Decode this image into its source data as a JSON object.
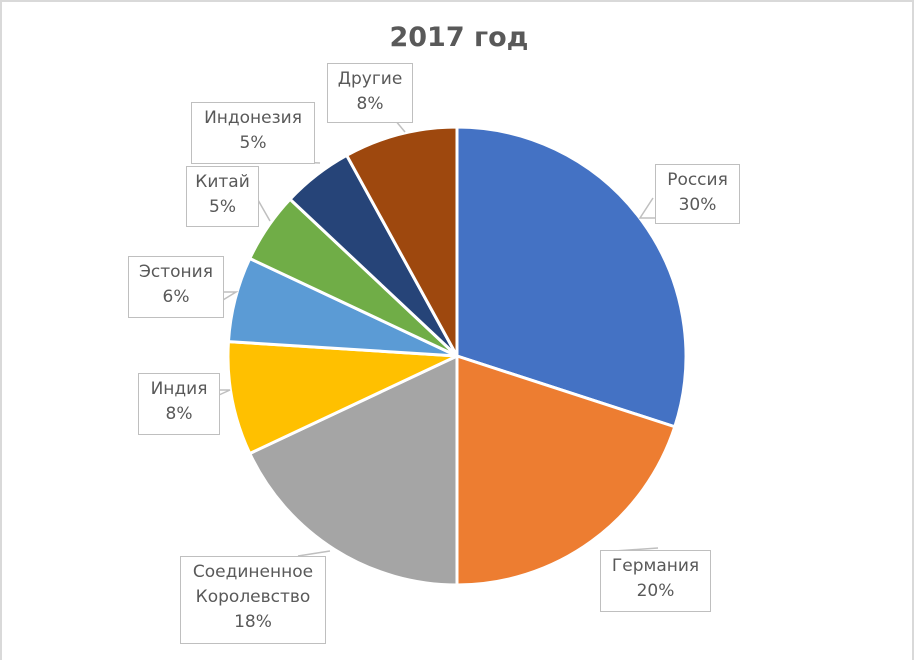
{
  "chart_data": {
    "type": "pie",
    "title": "2017 год",
    "categories": [
      "Россия",
      "Германия",
      "Соединенное Королевство",
      "Индия",
      "Эстония",
      "Китай",
      "Индонезия",
      "Другие"
    ],
    "values": [
      30,
      20,
      18,
      8,
      6,
      5,
      5,
      8
    ],
    "unit": "%",
    "colors": [
      "#4472C4",
      "#ED7D31",
      "#A5A5A5",
      "#FFC000",
      "#5B9BD5",
      "#70AD47",
      "#264478",
      "#9E480E"
    ],
    "start_angle": "12 o'clock",
    "direction": "clockwise",
    "legend": "none",
    "data_labels": "category name and percentage in callout boxes"
  },
  "labels": {
    "russia": {
      "name": "Россия",
      "pct": "30%"
    },
    "germany": {
      "name": "Германия",
      "pct": "20%"
    },
    "uk": {
      "name1": "Соединенное",
      "name2": "Королевство",
      "pct": "18%"
    },
    "india": {
      "name": "Индия",
      "pct": "8%"
    },
    "estonia": {
      "name": "Эстония",
      "pct": "6%"
    },
    "china": {
      "name": "Китай",
      "pct": "5%"
    },
    "indonesia": {
      "name": "Индонезия",
      "pct": "5%"
    },
    "other": {
      "name": "Другие",
      "pct": "8%"
    }
  }
}
